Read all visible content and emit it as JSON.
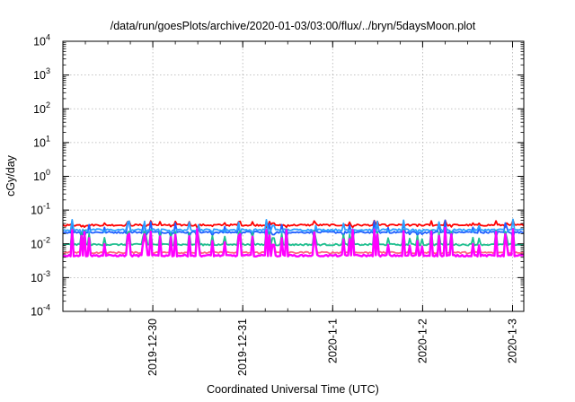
{
  "chart_data": {
    "type": "line",
    "title": "/data/run/goesPlots/archive/2020-01-03/03:00/flux/../bryn/5daysMoon.plot",
    "xlabel": "Coordinated Universal Time (UTC)",
    "ylabel": "cGy/day",
    "yscale": "log",
    "ylim": [
      0.0001,
      10000
    ],
    "xlim": [
      "2019-12-29 00:00",
      "2020-01-03 03:00"
    ],
    "y_ticks": [
      {
        "value": 0.0001,
        "base": "10",
        "exp": "-4"
      },
      {
        "value": 0.001,
        "base": "10",
        "exp": "-3"
      },
      {
        "value": 0.01,
        "base": "10",
        "exp": "-2"
      },
      {
        "value": 0.1,
        "base": "10",
        "exp": "-1"
      },
      {
        "value": 1,
        "base": "10",
        "exp": "0"
      },
      {
        "value": 10,
        "base": "10",
        "exp": "1"
      },
      {
        "value": 100,
        "base": "10",
        "exp": "2"
      },
      {
        "value": 1000,
        "base": "10",
        "exp": "3"
      },
      {
        "value": 10000,
        "base": "10",
        "exp": "4"
      }
    ],
    "x_ticks": [
      {
        "label": "2019-12-30",
        "value": "2019-12-30 00:00"
      },
      {
        "label": "2019-12-31",
        "value": "2019-12-31 00:00"
      },
      {
        "label": "2020-1-1",
        "value": "2020-01-01 00:00"
      },
      {
        "label": "2020-1-2",
        "value": "2020-01-02 00:00"
      },
      {
        "label": "2020-1-3",
        "value": "2020-01-03 00:00"
      }
    ],
    "grid": true,
    "legend": "none",
    "series": [
      {
        "color": "#ff0000",
        "baseline": 0.036,
        "spike_to": 0.05
      },
      {
        "color": "#1f5fff",
        "baseline": 0.022,
        "spike_to": 0.05
      },
      {
        "color": "#2ea0ff",
        "baseline": 0.026,
        "spike_to": 0.055
      },
      {
        "color": "#1fbf8f",
        "baseline": 0.0095,
        "spike_to": 0.03
      },
      {
        "color": "#ff6080",
        "baseline": 0.0055,
        "spike_to": 0.02
      },
      {
        "color": "#ff00ff",
        "baseline": 0.0045,
        "spike_to": 0.03
      }
    ]
  }
}
